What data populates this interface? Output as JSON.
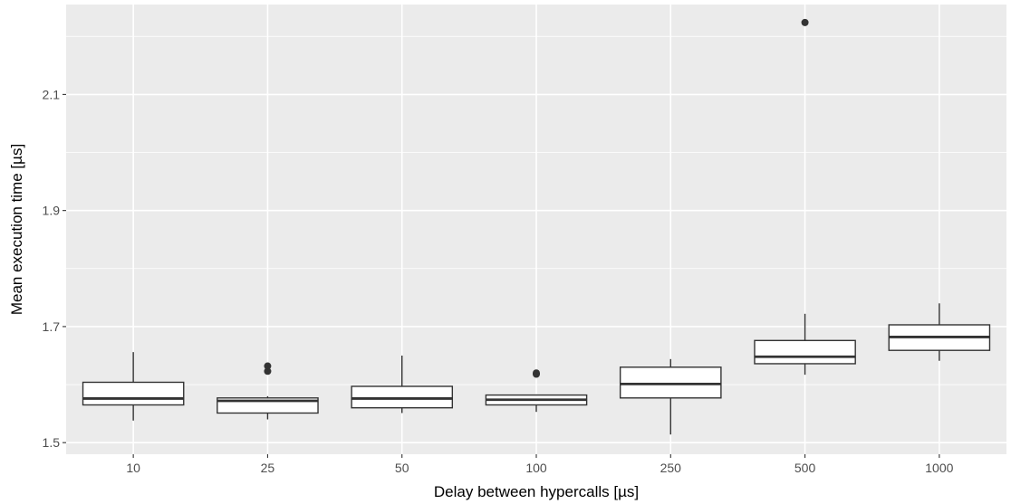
{
  "chart_data": {
    "type": "boxplot",
    "title": "",
    "xlabel": "Delay between hypercalls [µs]",
    "ylabel": "Mean execution time [µs]",
    "ylim": [
      1.48,
      2.255
    ],
    "y_ticks": [
      1.5,
      1.7,
      1.9,
      2.1
    ],
    "y_tick_labels": [
      "1.5",
      "1.7",
      "1.9",
      "2.1"
    ],
    "categories": [
      "10",
      "25",
      "50",
      "100",
      "250",
      "500",
      "1000"
    ],
    "boxes": [
      {
        "category": "10",
        "whisker_low": 1.538,
        "q1": 1.565,
        "median": 1.576,
        "q3": 1.604,
        "whisker_high": 1.656,
        "outliers": []
      },
      {
        "category": "25",
        "whisker_low": 1.54,
        "q1": 1.551,
        "median": 1.572,
        "q3": 1.577,
        "whisker_high": 1.58,
        "outliers": [
          1.623,
          1.632
        ]
      },
      {
        "category": "50",
        "whisker_low": 1.551,
        "q1": 1.56,
        "median": 1.576,
        "q3": 1.597,
        "whisker_high": 1.65,
        "outliers": []
      },
      {
        "category": "100",
        "whisker_low": 1.553,
        "q1": 1.565,
        "median": 1.574,
        "q3": 1.582,
        "whisker_high": 1.583,
        "outliers": [
          1.618,
          1.62
        ]
      },
      {
        "category": "250",
        "whisker_low": 1.514,
        "q1": 1.577,
        "median": 1.601,
        "q3": 1.63,
        "whisker_high": 1.644,
        "outliers": []
      },
      {
        "category": "500",
        "whisker_low": 1.617,
        "q1": 1.636,
        "median": 1.648,
        "q3": 1.676,
        "whisker_high": 1.722,
        "outliers": [
          2.224
        ]
      },
      {
        "category": "1000",
        "whisker_low": 1.641,
        "q1": 1.659,
        "median": 1.682,
        "q3": 1.703,
        "whisker_high": 1.74,
        "outliers": []
      }
    ],
    "grid": true,
    "legend": "none"
  }
}
